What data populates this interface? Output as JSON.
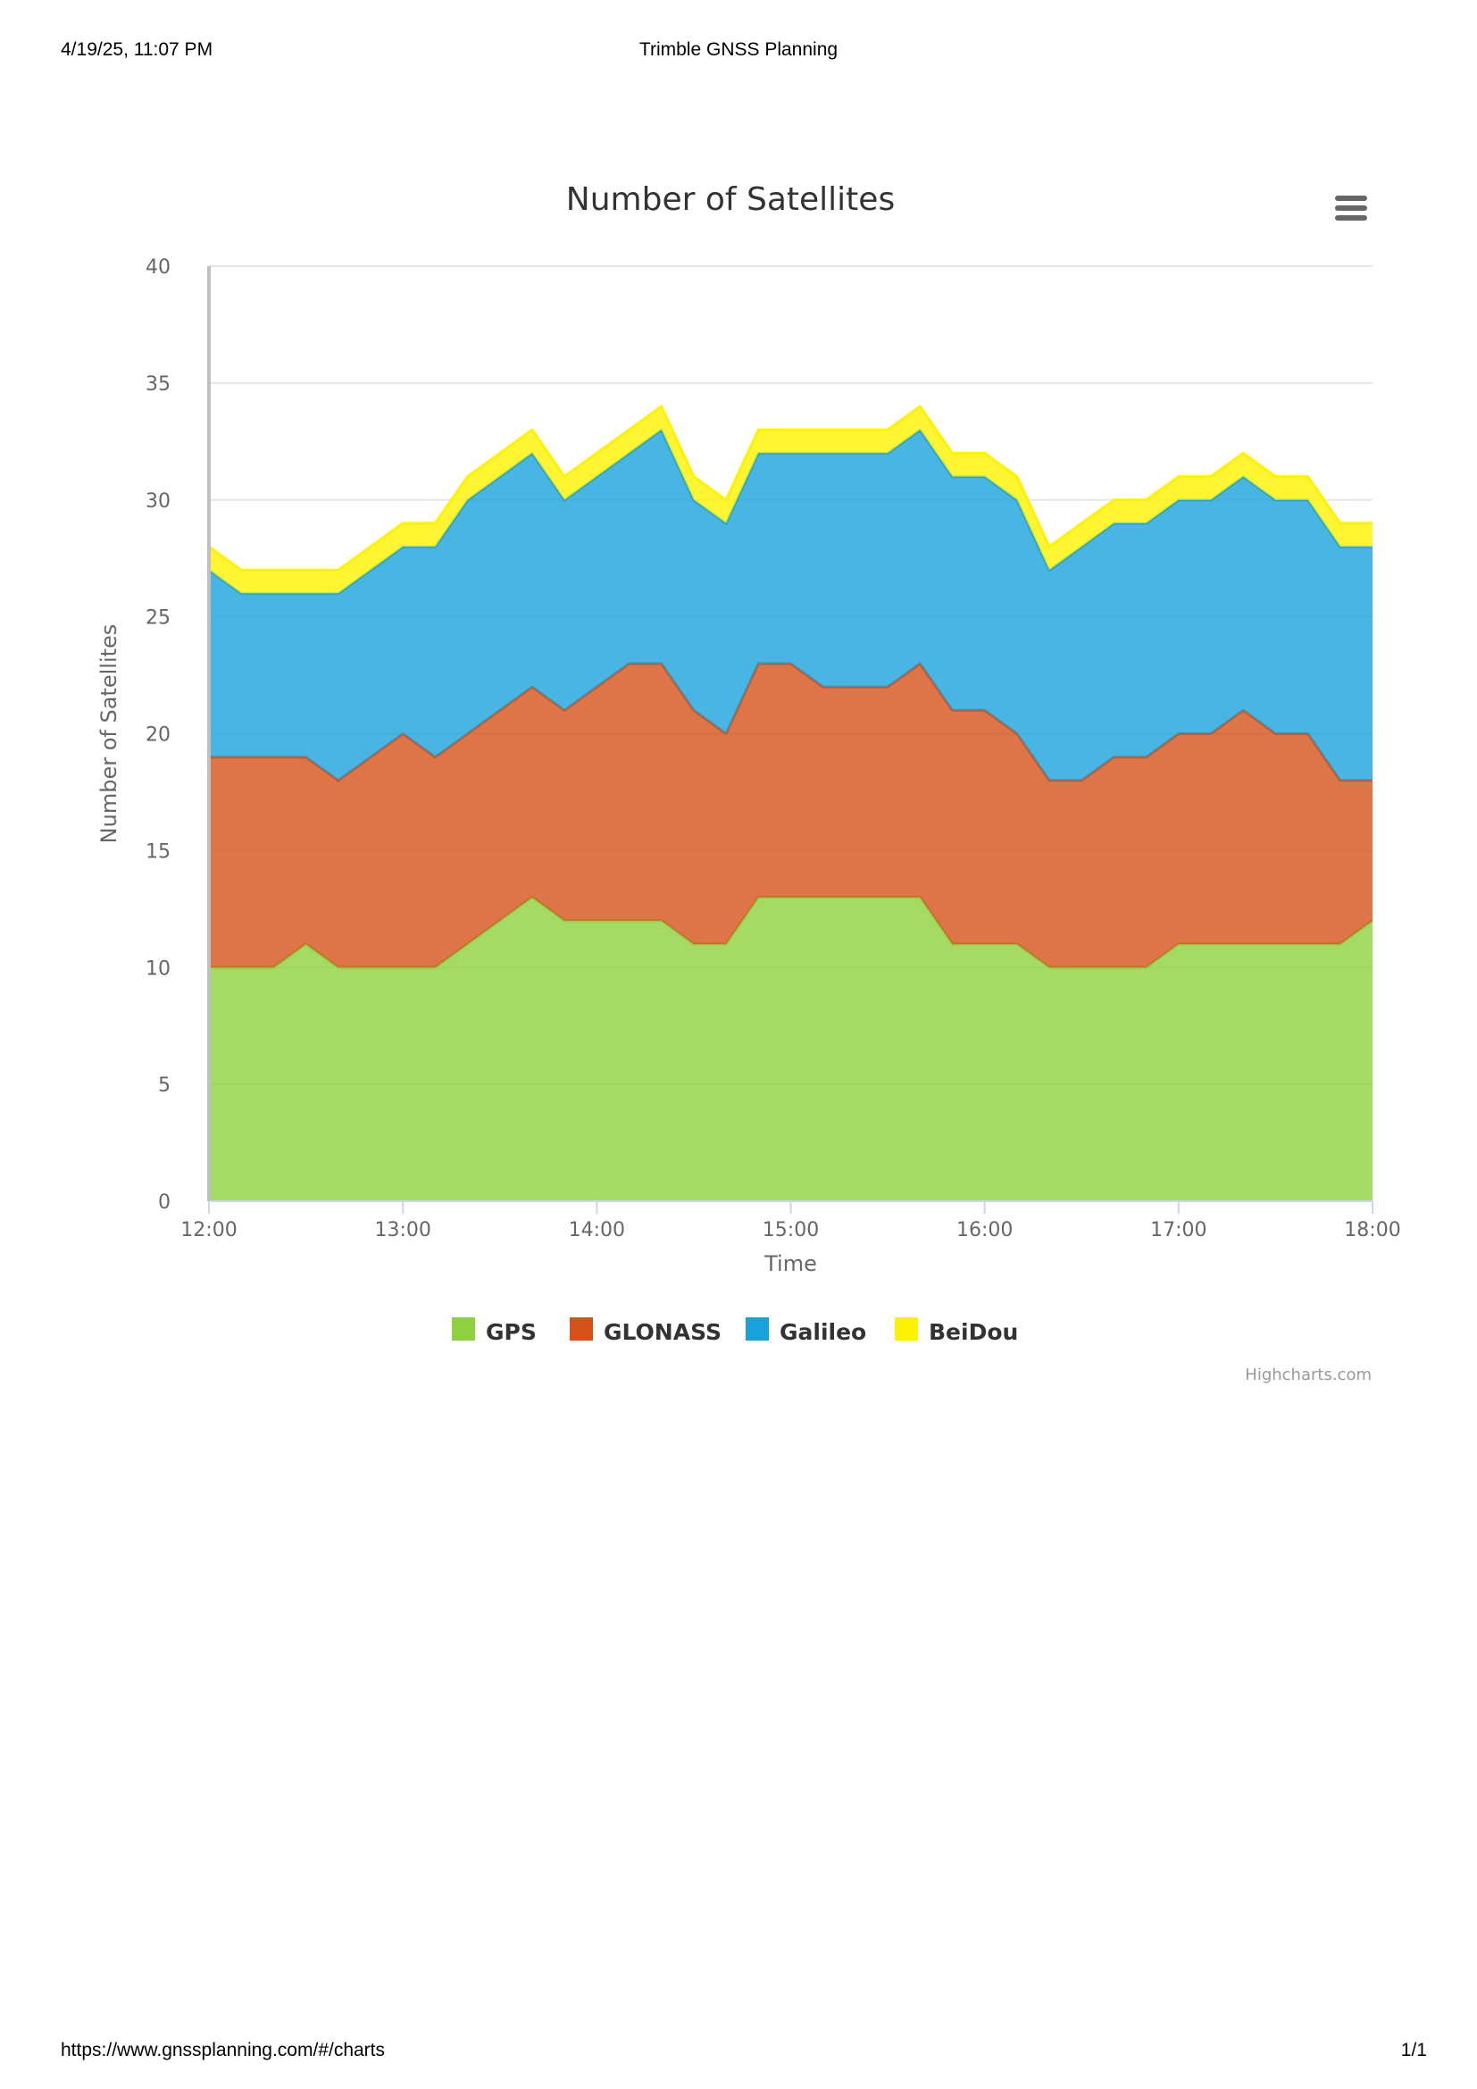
{
  "print": {
    "header_left": "4/19/25, 11:07 PM",
    "header_center": "Trimble GNSS Planning",
    "footer_left": "https://www.gnssplanning.com/#/charts",
    "footer_right": "1/1"
  },
  "credits": "Highcharts.com",
  "icons": {
    "menu": "hamburger-menu-icon"
  },
  "chart_data": {
    "type": "area",
    "stacking": "normal",
    "title": "Number of Satellites",
    "xlabel": "Time",
    "ylabel": "Number of Satellites",
    "ylim": [
      0,
      40
    ],
    "yticks": [
      0,
      5,
      10,
      15,
      20,
      25,
      30,
      35,
      40
    ],
    "xlim": [
      "12:00",
      "18:00"
    ],
    "xticks": [
      "12:00",
      "13:00",
      "14:00",
      "15:00",
      "16:00",
      "17:00",
      "18:00"
    ],
    "grid": true,
    "legend_position": "bottom-center",
    "x": [
      "12:00",
      "12:10",
      "12:20",
      "12:30",
      "12:40",
      "12:50",
      "13:00",
      "13:10",
      "13:20",
      "13:30",
      "13:40",
      "13:50",
      "14:00",
      "14:10",
      "14:20",
      "14:30",
      "14:40",
      "14:50",
      "15:00",
      "15:10",
      "15:20",
      "15:30",
      "15:40",
      "15:50",
      "16:00",
      "16:10",
      "16:20",
      "16:30",
      "16:40",
      "16:50",
      "17:00",
      "17:10",
      "17:20",
      "17:30",
      "17:40",
      "17:50",
      "18:00"
    ],
    "series": [
      {
        "name": "GPS",
        "color": "#8fd13e",
        "values": [
          10,
          10,
          10,
          11,
          10,
          10,
          10,
          10,
          11,
          12,
          13,
          12,
          12,
          12,
          12,
          11,
          11,
          13,
          13,
          13,
          13,
          13,
          13,
          11,
          11,
          11,
          10,
          10,
          10,
          10,
          11,
          11,
          11,
          11,
          11,
          11,
          12
        ]
      },
      {
        "name": "GLONASS",
        "color": "#d5521a",
        "values": [
          9,
          9,
          9,
          8,
          8,
          9,
          10,
          9,
          9,
          9,
          9,
          9,
          10,
          11,
          11,
          10,
          9,
          10,
          10,
          9,
          9,
          9,
          10,
          10,
          10,
          9,
          8,
          8,
          9,
          9,
          9,
          9,
          10,
          9,
          9,
          7,
          6
        ]
      },
      {
        "name": "Galileo",
        "color": "#1aa3db",
        "values": [
          8,
          7,
          7,
          7,
          8,
          8,
          8,
          9,
          10,
          10,
          10,
          9,
          9,
          9,
          10,
          9,
          9,
          9,
          9,
          10,
          10,
          10,
          10,
          10,
          10,
          10,
          9,
          10,
          10,
          10,
          10,
          10,
          10,
          10,
          10,
          10,
          10
        ]
      },
      {
        "name": "BeiDou",
        "color": "#fff200",
        "values": [
          1,
          1,
          1,
          1,
          1,
          1,
          1,
          1,
          1,
          1,
          1,
          1,
          1,
          1,
          1,
          1,
          1,
          1,
          1,
          1,
          1,
          1,
          1,
          1,
          1,
          1,
          1,
          1,
          1,
          1,
          1,
          1,
          1,
          1,
          1,
          1,
          1
        ]
      }
    ]
  }
}
